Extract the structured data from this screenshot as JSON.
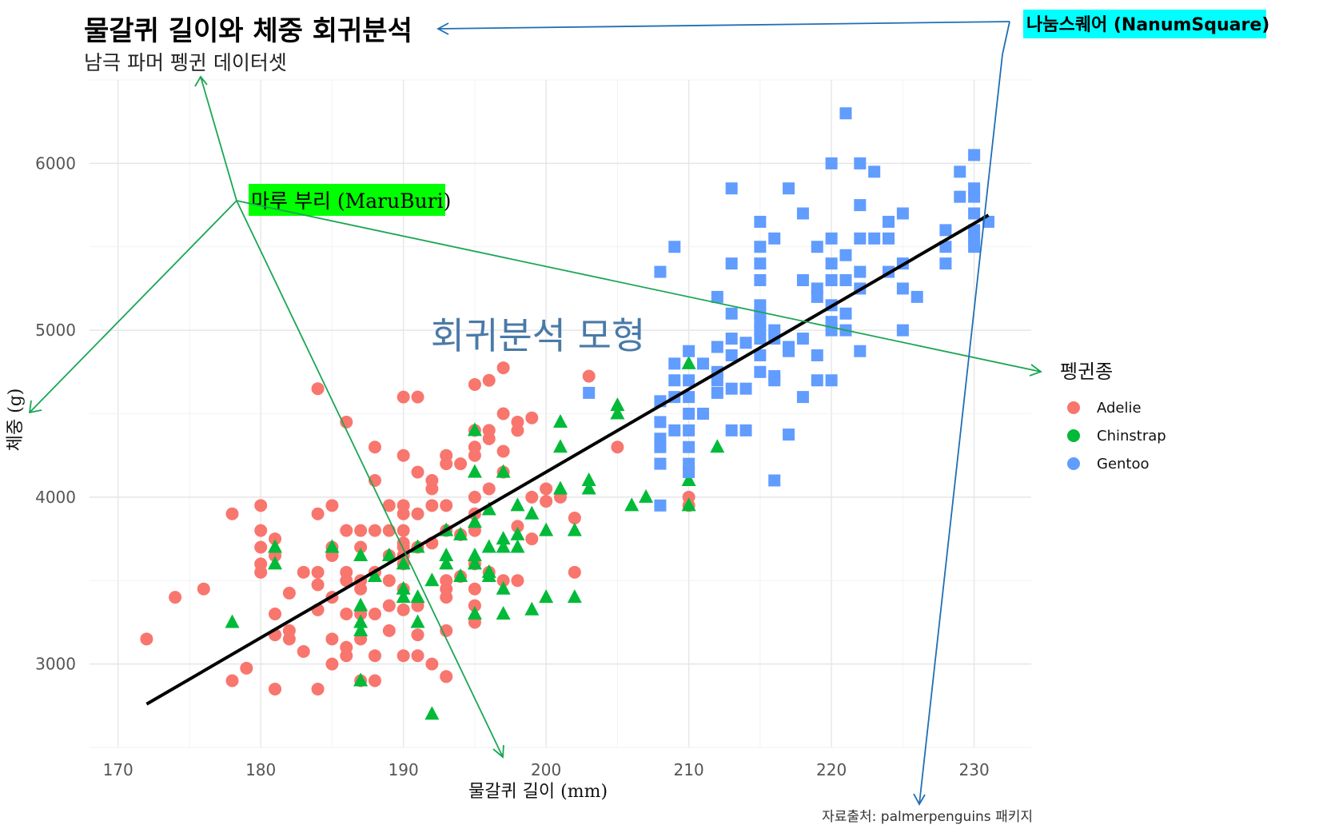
{
  "chart_data": {
    "type": "scatter",
    "title": "물갈퀴 길이와 체중 회귀분석",
    "subtitle": "남극 파머 펭귄 데이터셋",
    "xlabel": "물갈퀴 길이 (mm)",
    "ylabel": "체중 (g)",
    "caption": "자료출처: palmerpenguins 패키지",
    "xlim": [
      168,
      234
    ],
    "ylim": [
      2500,
      6500
    ],
    "x_ticks": [
      170,
      180,
      190,
      200,
      210,
      220,
      230
    ],
    "y_ticks": [
      3000,
      4000,
      5000,
      6000
    ],
    "grid": true,
    "legend": {
      "title": "펭귄종",
      "placement": "right",
      "entries": [
        "Adelie",
        "Chinstrap",
        "Gentoo"
      ]
    },
    "series": [
      {
        "name": "Adelie",
        "color": "#F8766D",
        "marker": "circle",
        "points": [
          [
            172,
            3150
          ],
          [
            174,
            3400
          ],
          [
            176,
            3450
          ],
          [
            178,
            3900
          ],
          [
            178,
            2900
          ],
          [
            179,
            2975
          ],
          [
            180,
            3950
          ],
          [
            180,
            3800
          ],
          [
            180,
            3700
          ],
          [
            180,
            3600
          ],
          [
            180,
            3550
          ],
          [
            181,
            3750
          ],
          [
            181,
            3650
          ],
          [
            181,
            3300
          ],
          [
            181,
            3175
          ],
          [
            181,
            2850
          ],
          [
            182,
            3425
          ],
          [
            182,
            3200
          ],
          [
            182,
            3150
          ],
          [
            183,
            3550
          ],
          [
            183,
            3075
          ],
          [
            184,
            4650
          ],
          [
            184,
            3900
          ],
          [
            184,
            3550
          ],
          [
            184,
            3475
          ],
          [
            184,
            3325
          ],
          [
            184,
            2850
          ],
          [
            185,
            3950
          ],
          [
            185,
            3700
          ],
          [
            185,
            3650
          ],
          [
            185,
            3400
          ],
          [
            185,
            3150
          ],
          [
            185,
            3000
          ],
          [
            186,
            4450
          ],
          [
            186,
            3800
          ],
          [
            186,
            3550
          ],
          [
            186,
            3500
          ],
          [
            186,
            3300
          ],
          [
            186,
            3100
          ],
          [
            186,
            3050
          ],
          [
            187,
            3800
          ],
          [
            187,
            3700
          ],
          [
            187,
            3500
          ],
          [
            187,
            3450
          ],
          [
            187,
            3300
          ],
          [
            187,
            3150
          ],
          [
            187,
            2900
          ],
          [
            188,
            4300
          ],
          [
            188,
            4100
          ],
          [
            188,
            3800
          ],
          [
            188,
            3550
          ],
          [
            188,
            3300
          ],
          [
            188,
            3050
          ],
          [
            188,
            2900
          ],
          [
            189,
            3950
          ],
          [
            189,
            3800
          ],
          [
            189,
            3650
          ],
          [
            189,
            3500
          ],
          [
            189,
            3350
          ],
          [
            189,
            3200
          ],
          [
            190,
            4600
          ],
          [
            190,
            4250
          ],
          [
            190,
            3950
          ],
          [
            190,
            3900
          ],
          [
            190,
            3800
          ],
          [
            190,
            3725
          ],
          [
            190,
            3700
          ],
          [
            190,
            3650
          ],
          [
            190,
            3600
          ],
          [
            190,
            3450
          ],
          [
            190,
            3325
          ],
          [
            190,
            3050
          ],
          [
            191,
            4600
          ],
          [
            191,
            4150
          ],
          [
            191,
            3900
          ],
          [
            191,
            3700
          ],
          [
            191,
            3350
          ],
          [
            191,
            3175
          ],
          [
            191,
            3050
          ],
          [
            192,
            4100
          ],
          [
            192,
            4050
          ],
          [
            192,
            3950
          ],
          [
            192,
            3725
          ],
          [
            192,
            3000
          ],
          [
            193,
            4250
          ],
          [
            193,
            4200
          ],
          [
            193,
            3950
          ],
          [
            193,
            3800
          ],
          [
            193,
            3500
          ],
          [
            193,
            3450
          ],
          [
            193,
            3400
          ],
          [
            193,
            3200
          ],
          [
            193,
            2925
          ],
          [
            194,
            4200
          ],
          [
            194,
            3775
          ],
          [
            194,
            3525
          ],
          [
            195,
            4675
          ],
          [
            195,
            4400
          ],
          [
            195,
            4300
          ],
          [
            195,
            4250
          ],
          [
            195,
            4000
          ],
          [
            195,
            3900
          ],
          [
            195,
            3800
          ],
          [
            195,
            3600
          ],
          [
            195,
            3450
          ],
          [
            195,
            3350
          ],
          [
            195,
            3250
          ],
          [
            196,
            4700
          ],
          [
            196,
            4400
          ],
          [
            196,
            4350
          ],
          [
            196,
            4050
          ],
          [
            196,
            3550
          ],
          [
            197,
            4775
          ],
          [
            197,
            4500
          ],
          [
            197,
            4275
          ],
          [
            197,
            4150
          ],
          [
            197,
            3500
          ],
          [
            198,
            4450
          ],
          [
            198,
            4400
          ],
          [
            198,
            3825
          ],
          [
            198,
            3500
          ],
          [
            199,
            4475
          ],
          [
            199,
            4000
          ],
          [
            199,
            3750
          ],
          [
            200,
            4050
          ],
          [
            200,
            3975
          ],
          [
            201,
            4000
          ],
          [
            202,
            3875
          ],
          [
            202,
            3550
          ],
          [
            203,
            4725
          ],
          [
            205,
            4300
          ],
          [
            210,
            4000
          ],
          [
            210,
            3950
          ]
        ]
      },
      {
        "name": "Chinstrap",
        "color": "#00BA38",
        "marker": "triangle",
        "points": [
          [
            178,
            3250
          ],
          [
            181,
            3700
          ],
          [
            181,
            3600
          ],
          [
            185,
            3700
          ],
          [
            187,
            3650
          ],
          [
            187,
            3350
          ],
          [
            187,
            3250
          ],
          [
            187,
            3200
          ],
          [
            187,
            2900
          ],
          [
            188,
            3525
          ],
          [
            189,
            3650
          ],
          [
            190,
            3600
          ],
          [
            190,
            3450
          ],
          [
            190,
            3400
          ],
          [
            191,
            3700
          ],
          [
            191,
            3400
          ],
          [
            191,
            3250
          ],
          [
            192,
            2700
          ],
          [
            192,
            3500
          ],
          [
            193,
            3800
          ],
          [
            193,
            3650
          ],
          [
            193,
            3600
          ],
          [
            194,
            3775
          ],
          [
            194,
            3525
          ],
          [
            195,
            4400
          ],
          [
            195,
            4150
          ],
          [
            195,
            3850
          ],
          [
            195,
            3650
          ],
          [
            195,
            3600
          ],
          [
            195,
            3300
          ],
          [
            196,
            3925
          ],
          [
            196,
            3700
          ],
          [
            196,
            3550
          ],
          [
            196,
            3525
          ],
          [
            197,
            4150
          ],
          [
            197,
            3750
          ],
          [
            197,
            3700
          ],
          [
            197,
            3450
          ],
          [
            197,
            3300
          ],
          [
            198,
            3950
          ],
          [
            198,
            3775
          ],
          [
            198,
            3700
          ],
          [
            199,
            3900
          ],
          [
            199,
            3325
          ],
          [
            200,
            3800
          ],
          [
            200,
            3400
          ],
          [
            201,
            4450
          ],
          [
            201,
            4300
          ],
          [
            201,
            4050
          ],
          [
            202,
            3800
          ],
          [
            202,
            3400
          ],
          [
            203,
            4100
          ],
          [
            203,
            4050
          ],
          [
            205,
            4550
          ],
          [
            205,
            4500
          ],
          [
            206,
            3950
          ],
          [
            207,
            4000
          ],
          [
            210,
            4800
          ],
          [
            210,
            4100
          ],
          [
            210,
            3950
          ],
          [
            212,
            4300
          ]
        ]
      },
      {
        "name": "Gentoo",
        "color": "#619CFF",
        "marker": "square",
        "points": [
          [
            203,
            4625
          ],
          [
            208,
            5350
          ],
          [
            208,
            4575
          ],
          [
            208,
            4450
          ],
          [
            208,
            4350
          ],
          [
            208,
            4300
          ],
          [
            208,
            4200
          ],
          [
            208,
            3950
          ],
          [
            209,
            5500
          ],
          [
            209,
            4800
          ],
          [
            209,
            4700
          ],
          [
            209,
            4600
          ],
          [
            209,
            4400
          ],
          [
            210,
            4875
          ],
          [
            210,
            4700
          ],
          [
            210,
            4600
          ],
          [
            210,
            4500
          ],
          [
            210,
            4400
          ],
          [
            210,
            4300
          ],
          [
            210,
            4200
          ],
          [
            210,
            4150
          ],
          [
            211,
            4800
          ],
          [
            211,
            4500
          ],
          [
            212,
            5200
          ],
          [
            212,
            4900
          ],
          [
            212,
            4750
          ],
          [
            212,
            4700
          ],
          [
            212,
            4625
          ],
          [
            213,
            5850
          ],
          [
            213,
            5400
          ],
          [
            213,
            5100
          ],
          [
            213,
            4950
          ],
          [
            213,
            4850
          ],
          [
            213,
            4650
          ],
          [
            213,
            4400
          ],
          [
            214,
            4925
          ],
          [
            214,
            4650
          ],
          [
            214,
            4400
          ],
          [
            215,
            5650
          ],
          [
            215,
            5500
          ],
          [
            215,
            5400
          ],
          [
            215,
            5300
          ],
          [
            215,
            5150
          ],
          [
            215,
            5100
          ],
          [
            215,
            5050
          ],
          [
            215,
            5000
          ],
          [
            215,
            4950
          ],
          [
            215,
            4850
          ],
          [
            215,
            4750
          ],
          [
            216,
            5550
          ],
          [
            216,
            5000
          ],
          [
            216,
            4950
          ],
          [
            216,
            4725
          ],
          [
            216,
            4700
          ],
          [
            216,
            4100
          ],
          [
            217,
            5850
          ],
          [
            217,
            4900
          ],
          [
            217,
            4875
          ],
          [
            217,
            4375
          ],
          [
            218,
            5700
          ],
          [
            218,
            5300
          ],
          [
            218,
            4950
          ],
          [
            218,
            4600
          ],
          [
            219,
            5500
          ],
          [
            219,
            5250
          ],
          [
            219,
            5200
          ],
          [
            219,
            4850
          ],
          [
            219,
            4700
          ],
          [
            220,
            6000
          ],
          [
            220,
            5550
          ],
          [
            220,
            5400
          ],
          [
            220,
            5300
          ],
          [
            220,
            5150
          ],
          [
            220,
            5050
          ],
          [
            220,
            5000
          ],
          [
            220,
            4700
          ],
          [
            221,
            6300
          ],
          [
            221,
            5450
          ],
          [
            221,
            5300
          ],
          [
            221,
            5100
          ],
          [
            221,
            5000
          ],
          [
            222,
            6000
          ],
          [
            222,
            5750
          ],
          [
            222,
            5550
          ],
          [
            222,
            5350
          ],
          [
            222,
            5250
          ],
          [
            222,
            4875
          ],
          [
            223,
            5950
          ],
          [
            223,
            5550
          ],
          [
            224,
            5650
          ],
          [
            224,
            5550
          ],
          [
            224,
            5350
          ],
          [
            225,
            5700
          ],
          [
            225,
            5400
          ],
          [
            225,
            5250
          ],
          [
            225,
            5000
          ],
          [
            226,
            5200
          ],
          [
            228,
            5600
          ],
          [
            228,
            5500
          ],
          [
            228,
            5400
          ],
          [
            229,
            5950
          ],
          [
            229,
            5800
          ],
          [
            230,
            6050
          ],
          [
            230,
            5850
          ],
          [
            230,
            5800
          ],
          [
            230,
            5700
          ],
          [
            230,
            5600
          ],
          [
            230,
            5550
          ],
          [
            230,
            5500
          ],
          [
            231,
            5650
          ]
        ]
      }
    ],
    "regression_line": {
      "x": [
        172,
        231
      ],
      "y": [
        2760,
        5690
      ]
    },
    "annotations": [
      {
        "text": "회귀분석 모형",
        "x": 200,
        "y": 4990,
        "color": "#4a7aa7"
      },
      {
        "text": "마루 부리 (MaruBuri)",
        "background": "#00ff00",
        "arrow_color": "#1aa653"
      },
      {
        "text": "나눔스퀘어 (NanumSquare)",
        "background": "#00ffff",
        "arrow_color": "#1f6fb4"
      }
    ]
  }
}
